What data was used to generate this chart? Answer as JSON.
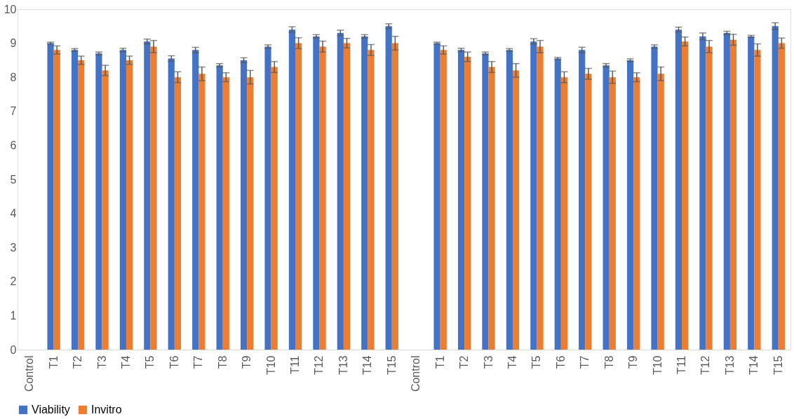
{
  "chart_data": {
    "type": "bar",
    "categories": [
      "Control",
      "T1",
      "T2",
      "T3",
      "T4",
      "T5",
      "T6",
      "T7",
      "T8",
      "T9",
      "T10",
      "T11",
      "T12",
      "T13",
      "T14",
      "T15",
      "Control",
      "T1",
      "T2",
      "T3",
      "T4",
      "T5",
      "T6",
      "T7",
      "T8",
      "T9",
      "T10",
      "T11",
      "T12",
      "T13",
      "T14",
      "T15"
    ],
    "series": [
      {
        "name": "Viability",
        "color": "#4472c4",
        "values": [
          null,
          9.0,
          8.8,
          8.7,
          8.8,
          9.05,
          8.55,
          8.8,
          8.35,
          8.5,
          8.9,
          9.4,
          9.2,
          9.3,
          9.2,
          9.5,
          null,
          9.0,
          8.8,
          8.7,
          8.8,
          9.05,
          8.55,
          8.8,
          8.35,
          8.5,
          8.9,
          9.4,
          9.2,
          9.3,
          9.2,
          9.5
        ],
        "errors": [
          null,
          0.03,
          0.04,
          0.04,
          0.05,
          0.07,
          0.08,
          0.08,
          0.05,
          0.07,
          0.05,
          0.08,
          0.05,
          0.08,
          0.05,
          0.07,
          null,
          0.03,
          0.05,
          0.04,
          0.04,
          0.08,
          0.03,
          0.08,
          0.05,
          0.04,
          0.05,
          0.07,
          0.1,
          0.05,
          0.03,
          0.1
        ]
      },
      {
        "name": "Invitro",
        "color": "#ed7d31",
        "values": [
          null,
          8.8,
          8.5,
          8.2,
          8.5,
          8.9,
          8.0,
          8.1,
          8.0,
          8.0,
          8.3,
          9.0,
          8.9,
          9.0,
          8.8,
          9.0,
          null,
          8.8,
          8.6,
          8.3,
          8.2,
          8.9,
          8.0,
          8.1,
          8.0,
          8.0,
          8.1,
          9.05,
          8.9,
          9.1,
          8.8,
          9.0
        ],
        "errors": [
          null,
          0.12,
          0.12,
          0.15,
          0.12,
          0.18,
          0.16,
          0.2,
          0.13,
          0.2,
          0.16,
          0.16,
          0.16,
          0.14,
          0.16,
          0.2,
          null,
          0.12,
          0.14,
          0.16,
          0.2,
          0.18,
          0.16,
          0.16,
          0.18,
          0.13,
          0.2,
          0.13,
          0.18,
          0.16,
          0.18,
          0.15
        ]
      }
    ],
    "ylim": [
      0,
      10
    ],
    "yticks": [
      0,
      1,
      2,
      3,
      4,
      5,
      6,
      7,
      8,
      9,
      10
    ],
    "grid": false,
    "legend": "bottom"
  }
}
